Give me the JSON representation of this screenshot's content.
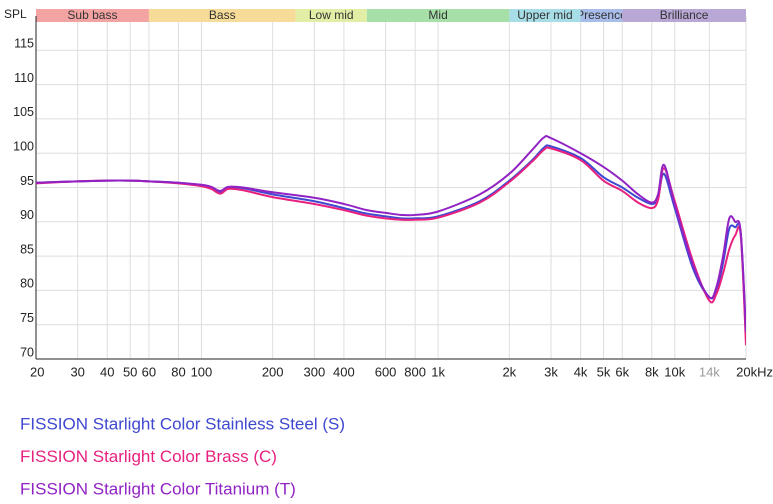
{
  "chart_data": {
    "type": "line",
    "y_label": "SPL",
    "log_x": true,
    "grid": true,
    "xlim": [
      20,
      20000
    ],
    "ylim": [
      70,
      120
    ],
    "yticks": [
      70,
      75,
      80,
      85,
      90,
      95,
      100,
      105,
      110,
      115
    ],
    "xticks": [
      20,
      30,
      40,
      50,
      60,
      80,
      100,
      200,
      300,
      400,
      600,
      800,
      {
        "value": 1000,
        "label": "1k"
      },
      {
        "value": 2000,
        "label": "2k"
      },
      {
        "value": 3000,
        "label": "3k"
      },
      {
        "value": 4000,
        "label": "4k"
      },
      {
        "value": 5000,
        "label": "5k"
      },
      {
        "value": 6000,
        "label": "6k"
      },
      {
        "value": 8000,
        "label": "8k"
      },
      {
        "value": 10000,
        "label": "10k"
      },
      {
        "value": 14000,
        "label": "14k",
        "color": "#9a9a9a"
      },
      {
        "value": 20000,
        "label": "20kHz"
      }
    ],
    "bands": [
      {
        "name": "Sub bass",
        "from": 20,
        "to": 60,
        "color": "#f4a3a3"
      },
      {
        "name": "Bass",
        "from": 60,
        "to": 250,
        "color": "#f6dc98"
      },
      {
        "name": "Low mid",
        "from": 250,
        "to": 500,
        "color": "#e2eda6"
      },
      {
        "name": "Mid",
        "from": 500,
        "to": 2000,
        "color": "#a6e0a8"
      },
      {
        "name": "Upper mid",
        "from": 2000,
        "to": 4000,
        "color": "#a6dde6"
      },
      {
        "name": "Presence",
        "from": 4000,
        "to": 6000,
        "color": "#a9bdea"
      },
      {
        "name": "Brilliance",
        "from": 6000,
        "to": 20000,
        "color": "#b9a7d6"
      }
    ],
    "x": [
      20,
      30,
      40,
      50,
      60,
      80,
      100,
      110,
      120,
      130,
      150,
      200,
      300,
      400,
      500,
      600,
      700,
      800,
      1000,
      1500,
      2000,
      2500,
      2800,
      3000,
      4000,
      5000,
      6000,
      7000,
      8000,
      8500,
      9000,
      10000,
      12000,
      14000,
      15000,
      16000,
      17000,
      18000,
      19000,
      20000
    ],
    "series": [
      {
        "name": "FISSION Starlight Color Stainless Steel (S)",
        "color": "#3f48d0",
        "values": [
          95.7,
          95.9,
          96,
          96,
          95.9,
          95.7,
          95.3,
          95,
          94.3,
          95,
          94.9,
          94,
          93,
          92,
          91.2,
          90.8,
          90.5,
          90.5,
          90.8,
          93,
          96,
          99,
          100.8,
          101,
          99.3,
          96.5,
          95,
          93.5,
          92.6,
          93.5,
          97,
          92,
          83,
          79,
          80,
          84,
          89,
          89.2,
          88.3,
          73
        ]
      },
      {
        "name": "FISSION Starlight Color Brass (C)",
        "color": "#e8217f",
        "values": [
          95.6,
          95.9,
          96,
          96,
          95.9,
          95.6,
          95.2,
          94.8,
          94.1,
          94.8,
          94.6,
          93.6,
          92.6,
          91.7,
          90.9,
          90.5,
          90.3,
          90.3,
          90.6,
          92.8,
          95.8,
          98.8,
          100.5,
          100.7,
          99,
          96,
          94.5,
          92.8,
          92,
          93.2,
          97.8,
          93,
          84,
          78.5,
          79.5,
          82.5,
          86,
          88,
          88,
          72
        ]
      },
      {
        "name": "FISSION Starlight Color Titanium (T)",
        "color": "#9122c4",
        "values": [
          95.7,
          95.9,
          96,
          96,
          95.9,
          95.7,
          95.4,
          95.1,
          94.5,
          95.1,
          95,
          94.3,
          93.5,
          92.6,
          91.7,
          91.3,
          91,
          91,
          91.5,
          94,
          97,
          100.5,
          102.3,
          102.2,
          100,
          98,
          96,
          94,
          92.8,
          94,
          98.3,
          92.5,
          83.5,
          79,
          80.5,
          85,
          90.5,
          90,
          88.5,
          74
        ]
      }
    ]
  }
}
